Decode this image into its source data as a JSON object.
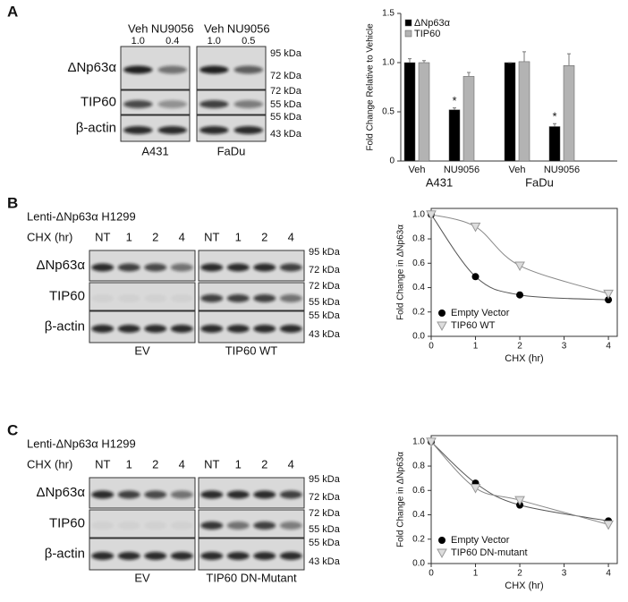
{
  "figure": {
    "panel_labels": [
      "A",
      "B",
      "C"
    ],
    "blot_a": {
      "lanes": [
        "Veh",
        "NU9056",
        "Veh",
        "NU9056"
      ],
      "quant": [
        "1.0",
        "0.4",
        "1.0",
        "0.5"
      ],
      "rows": [
        "ΔNp63α",
        "TIP60",
        "β-actin"
      ],
      "markers": [
        "95 kDa",
        "72 kDa",
        "72 kDa",
        "55 kDa",
        "55 kDa",
        "43 kDa"
      ],
      "groups": [
        "A431",
        "FaDu"
      ]
    },
    "blot_b": {
      "title": "Lenti-ΔNp63α H1299",
      "time_label": "CHX (hr)",
      "lanes": [
        "NT",
        "1",
        "2",
        "4",
        "NT",
        "1",
        "2",
        "4"
      ],
      "rows": [
        "ΔNp63α",
        "TIP60",
        "β-actin"
      ],
      "markers": [
        "95 kDa",
        "72 kDa",
        "72 kDa",
        "55 kDa",
        "55 kDa",
        "43 kDa"
      ],
      "groups": [
        "EV",
        "TIP60 WT"
      ]
    },
    "blot_c": {
      "title": "Lenti-ΔNp63α H1299",
      "time_label": "CHX (hr)",
      "lanes": [
        "NT",
        "1",
        "2",
        "4",
        "NT",
        "1",
        "2",
        "4"
      ],
      "rows": [
        "ΔNp63α",
        "TIP60",
        "β-actin"
      ],
      "markers": [
        "95 kDa",
        "72 kDa",
        "72 kDa",
        "55 kDa",
        "55 kDa",
        "43 kDa"
      ],
      "groups": [
        "EV",
        "TIP60 DN-Mutant"
      ]
    }
  },
  "chart_data": [
    {
      "type": "bar",
      "y_label": "Fold Change Relative to Vehicle",
      "categories": [
        "Veh",
        "NU9056",
        "Veh",
        "NU9056"
      ],
      "groups": [
        "A431",
        "FaDu"
      ],
      "series": [
        {
          "name": "ΔNp63α",
          "color": "#000000",
          "values": [
            1.0,
            0.52,
            1.0,
            0.35
          ],
          "errors": [
            0.04,
            0.02,
            0,
            0.03
          ],
          "significance": [
            null,
            "*",
            null,
            "*"
          ]
        },
        {
          "name": "TIP60",
          "color": "#b3b3b3",
          "values": [
            1.0,
            0.86,
            1.01,
            0.97
          ],
          "errors": [
            0.02,
            0.04,
            0.1,
            0.12
          ]
        }
      ],
      "ylim": [
        0,
        1.5
      ],
      "yticks": [
        0,
        0.5,
        {
          "value": 1,
          "label": "1.0"
        },
        1.5
      ],
      "legend": "upper left",
      "box": false
    },
    {
      "type": "line",
      "y_label": "Fold Change in ΔNp63α",
      "x_label": "CHX (hr)",
      "x": [
        0,
        1,
        2,
        4
      ],
      "series": [
        {
          "name": "Empty Vector",
          "color": "#000000",
          "marker": "circle",
          "values": [
            1.0,
            0.49,
            0.34,
            0.3
          ]
        },
        {
          "name": "TIP60 WT",
          "color": "#999999",
          "marker": "triangle-down",
          "values": [
            1.0,
            0.9,
            0.58,
            0.35
          ]
        }
      ],
      "xlim": [
        0,
        4.2
      ],
      "xticks": [
        0,
        1,
        2,
        3,
        4
      ],
      "ylim": [
        0,
        1.05
      ],
      "yticks": [
        {
          "value": 0,
          "label": "0.0"
        },
        0.2,
        0.4,
        0.6,
        0.8,
        {
          "value": 1,
          "label": "1.0"
        }
      ],
      "legend": "lower left",
      "box": true
    },
    {
      "type": "line",
      "y_label": "Fold Change in ΔNp63α",
      "x_label": "CHX (hr)",
      "x": [
        0,
        1,
        2,
        4
      ],
      "series": [
        {
          "name": "Empty Vector",
          "color": "#000000",
          "marker": "circle",
          "values": [
            1.0,
            0.66,
            0.48,
            0.35
          ]
        },
        {
          "name": "TIP60 DN-mutant",
          "color": "#999999",
          "marker": "triangle-down",
          "values": [
            1.0,
            0.62,
            0.52,
            0.32
          ]
        }
      ],
      "xlim": [
        0,
        4.2
      ],
      "xticks": [
        0,
        1,
        2,
        3,
        4
      ],
      "ylim": [
        0,
        1.05
      ],
      "yticks": [
        {
          "value": 0,
          "label": "0.0"
        },
        0.2,
        0.4,
        0.6,
        0.8,
        {
          "value": 1,
          "label": "1.0"
        }
      ],
      "legend": "lower left",
      "box": true
    }
  ]
}
